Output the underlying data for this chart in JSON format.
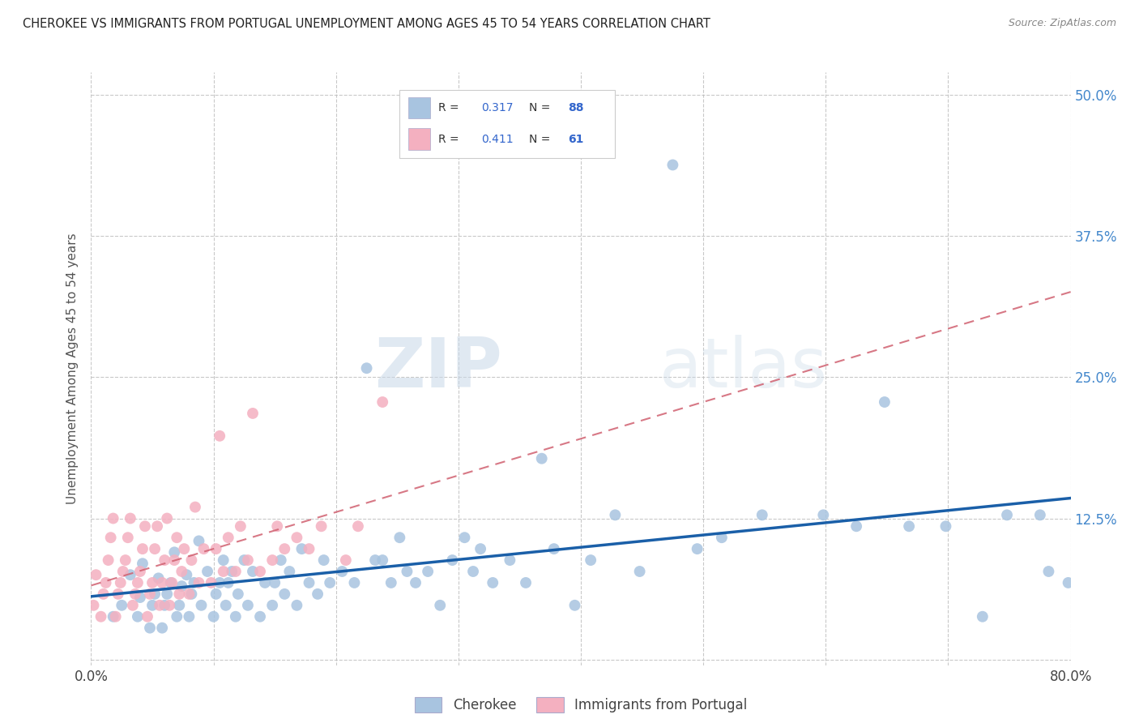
{
  "title": "CHEROKEE VS IMMIGRANTS FROM PORTUGAL UNEMPLOYMENT AMONG AGES 45 TO 54 YEARS CORRELATION CHART",
  "source": "Source: ZipAtlas.com",
  "ylabel": "Unemployment Among Ages 45 to 54 years",
  "xlim": [
    0.0,
    0.8
  ],
  "ylim": [
    -0.005,
    0.52
  ],
  "y_tick_positions": [
    0.0,
    0.125,
    0.25,
    0.375,
    0.5
  ],
  "x_tick_positions": [
    0.0,
    0.1,
    0.2,
    0.3,
    0.4,
    0.5,
    0.6,
    0.7,
    0.8
  ],
  "cherokee_R": "0.317",
  "cherokee_N": "88",
  "portugal_R": "0.411",
  "portugal_N": "61",
  "cherokee_color": "#a8c4e0",
  "cherokee_line_color": "#1a5fa8",
  "portugal_color": "#f4b0c0",
  "portugal_line_color": "#d06070",
  "legend_label_1": "Cherokee",
  "legend_label_2": "Immigrants from Portugal",
  "watermark_zip": "ZIP",
  "watermark_atlas": "atlas",
  "cherokee_x": [
    0.018,
    0.025,
    0.032,
    0.038,
    0.04,
    0.042,
    0.048,
    0.05,
    0.052,
    0.055,
    0.058,
    0.06,
    0.062,
    0.065,
    0.068,
    0.07,
    0.072,
    0.074,
    0.078,
    0.08,
    0.082,
    0.084,
    0.088,
    0.09,
    0.095,
    0.1,
    0.102,
    0.105,
    0.108,
    0.11,
    0.112,
    0.115,
    0.118,
    0.12,
    0.125,
    0.128,
    0.132,
    0.138,
    0.142,
    0.148,
    0.15,
    0.155,
    0.158,
    0.162,
    0.168,
    0.172,
    0.178,
    0.185,
    0.19,
    0.195,
    0.205,
    0.215,
    0.225,
    0.232,
    0.238,
    0.245,
    0.252,
    0.258,
    0.265,
    0.275,
    0.285,
    0.295,
    0.305,
    0.312,
    0.318,
    0.328,
    0.342,
    0.355,
    0.368,
    0.378,
    0.395,
    0.408,
    0.428,
    0.448,
    0.475,
    0.495,
    0.515,
    0.548,
    0.598,
    0.625,
    0.648,
    0.668,
    0.698,
    0.728,
    0.748,
    0.775,
    0.782,
    0.798
  ],
  "cherokee_y": [
    0.038,
    0.048,
    0.075,
    0.038,
    0.055,
    0.085,
    0.028,
    0.048,
    0.058,
    0.072,
    0.028,
    0.048,
    0.058,
    0.068,
    0.095,
    0.038,
    0.048,
    0.065,
    0.075,
    0.038,
    0.058,
    0.068,
    0.105,
    0.048,
    0.078,
    0.038,
    0.058,
    0.068,
    0.088,
    0.048,
    0.068,
    0.078,
    0.038,
    0.058,
    0.088,
    0.048,
    0.078,
    0.038,
    0.068,
    0.048,
    0.068,
    0.088,
    0.058,
    0.078,
    0.048,
    0.098,
    0.068,
    0.058,
    0.088,
    0.068,
    0.078,
    0.068,
    0.258,
    0.088,
    0.088,
    0.068,
    0.108,
    0.078,
    0.068,
    0.078,
    0.048,
    0.088,
    0.108,
    0.078,
    0.098,
    0.068,
    0.088,
    0.068,
    0.178,
    0.098,
    0.048,
    0.088,
    0.128,
    0.078,
    0.438,
    0.098,
    0.108,
    0.128,
    0.128,
    0.118,
    0.228,
    0.118,
    0.118,
    0.038,
    0.128,
    0.128,
    0.078,
    0.068
  ],
  "portugal_x": [
    0.002,
    0.004,
    0.008,
    0.01,
    0.012,
    0.014,
    0.016,
    0.018,
    0.02,
    0.022,
    0.024,
    0.026,
    0.028,
    0.03,
    0.032,
    0.034,
    0.036,
    0.038,
    0.04,
    0.042,
    0.044,
    0.046,
    0.048,
    0.05,
    0.052,
    0.054,
    0.056,
    0.058,
    0.06,
    0.062,
    0.064,
    0.066,
    0.068,
    0.07,
    0.072,
    0.074,
    0.076,
    0.08,
    0.082,
    0.085,
    0.088,
    0.092,
    0.098,
    0.102,
    0.105,
    0.108,
    0.112,
    0.118,
    0.122,
    0.128,
    0.132,
    0.138,
    0.148,
    0.152,
    0.158,
    0.168,
    0.178,
    0.188,
    0.208,
    0.218,
    0.238
  ],
  "portugal_y": [
    0.048,
    0.075,
    0.038,
    0.058,
    0.068,
    0.088,
    0.108,
    0.125,
    0.038,
    0.058,
    0.068,
    0.078,
    0.088,
    0.108,
    0.125,
    0.048,
    0.058,
    0.068,
    0.078,
    0.098,
    0.118,
    0.038,
    0.058,
    0.068,
    0.098,
    0.118,
    0.048,
    0.068,
    0.088,
    0.125,
    0.048,
    0.068,
    0.088,
    0.108,
    0.058,
    0.078,
    0.098,
    0.058,
    0.088,
    0.135,
    0.068,
    0.098,
    0.068,
    0.098,
    0.198,
    0.078,
    0.108,
    0.078,
    0.118,
    0.088,
    0.218,
    0.078,
    0.088,
    0.118,
    0.098,
    0.108,
    0.098,
    0.118,
    0.088,
    0.118,
    0.228
  ]
}
